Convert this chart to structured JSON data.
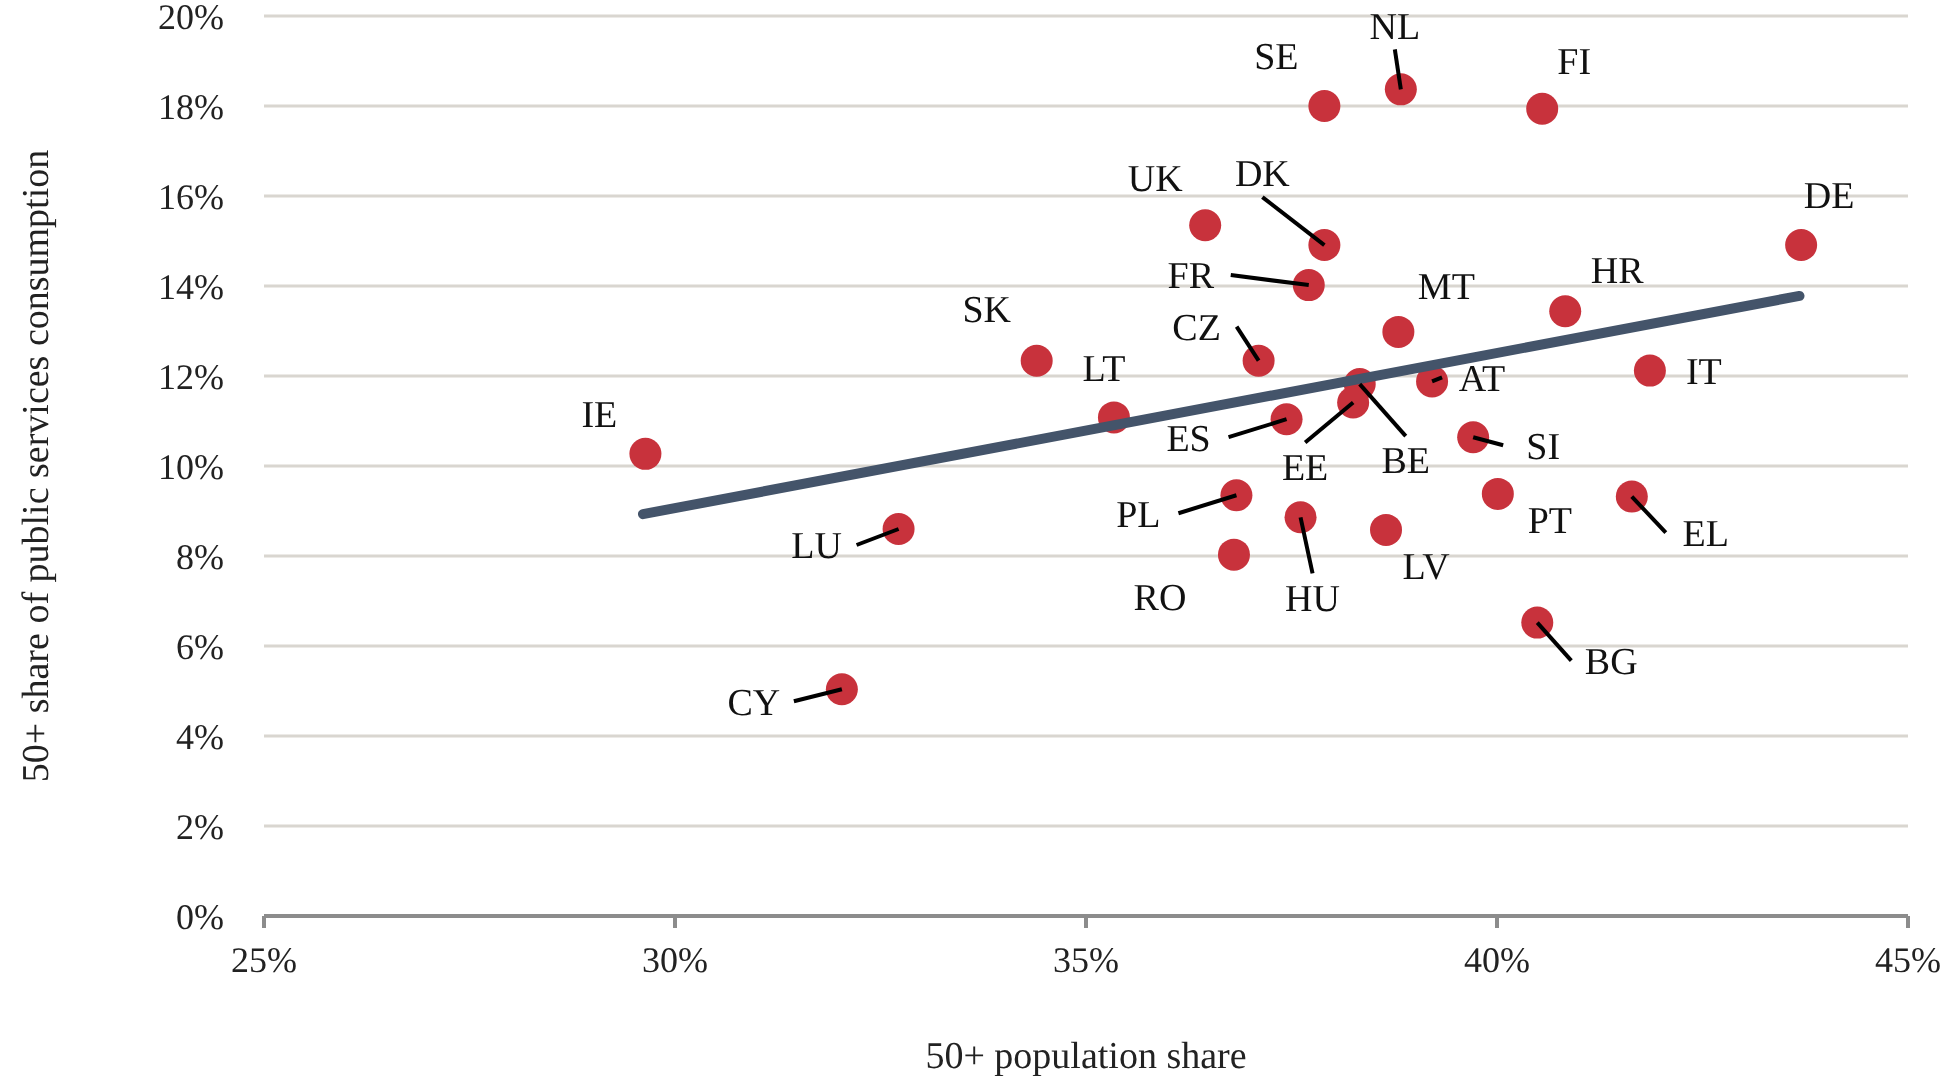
{
  "chart_data": {
    "type": "scatter",
    "xlabel": "50+ population share",
    "ylabel": "50+ share of public services consumption",
    "xlim": [
      25,
      45
    ],
    "ylim": [
      0,
      20
    ],
    "xticks": [
      {
        "value": 25,
        "label": "25%"
      },
      {
        "value": 30,
        "label": "30%"
      },
      {
        "value": 35,
        "label": "35%"
      },
      {
        "value": 40,
        "label": "40%"
      },
      {
        "value": 45,
        "label": "45%"
      }
    ],
    "yticks": [
      {
        "value": 0,
        "label": "0%"
      },
      {
        "value": 2,
        "label": "2%"
      },
      {
        "value": 4,
        "label": "4%"
      },
      {
        "value": 6,
        "label": "6%"
      },
      {
        "value": 8,
        "label": "8%"
      },
      {
        "value": 10,
        "label": "10%"
      },
      {
        "value": 12,
        "label": "12%"
      },
      {
        "value": 14,
        "label": "14%"
      },
      {
        "value": 16,
        "label": "16%"
      },
      {
        "value": 18,
        "label": "18%"
      },
      {
        "value": 20,
        "label": "20%"
      }
    ],
    "grid": "y",
    "series": [
      {
        "marker": "circle",
        "color": "#c8323c",
        "x": [
          37.9,
          38.83,
          40.55,
          36.45,
          37.9,
          37.71,
          43.7,
          40.83,
          38.8,
          34.4,
          37.1,
          35.34,
          41.86,
          39.21,
          38.33,
          38.25,
          37.44,
          39.71,
          29.64,
          36.83,
          40.01,
          41.64,
          37.61,
          38.65,
          32.72,
          36.8,
          40.49,
          32.03
        ],
        "values": [
          18.0,
          18.37,
          17.94,
          15.35,
          14.91,
          14.02,
          14.91,
          13.44,
          12.98,
          12.34,
          12.34,
          11.08,
          12.12,
          11.88,
          11.82,
          11.41,
          11.04,
          10.64,
          10.27,
          9.35,
          9.38,
          9.32,
          8.86,
          8.58,
          8.6,
          8.03,
          6.52,
          5.04
        ]
      },
      {
        "type": "line",
        "color": "#44546a",
        "x": [
          29.61,
          43.68
        ],
        "values": [
          8.93,
          13.78
        ]
      }
    ],
    "annotations": [
      {
        "text": "SE",
        "x": 37.9,
        "y": 18.0
      },
      {
        "text": "NL",
        "x": 38.83,
        "y": 18.37
      },
      {
        "text": "FI",
        "x": 40.55,
        "y": 17.94
      },
      {
        "text": "UK",
        "x": 36.45,
        "y": 15.35
      },
      {
        "text": "DK",
        "x": 37.9,
        "y": 14.91
      },
      {
        "text": "FR",
        "x": 37.71,
        "y": 14.02
      },
      {
        "text": "DE",
        "x": 43.7,
        "y": 14.91
      },
      {
        "text": "HR",
        "x": 40.83,
        "y": 13.44
      },
      {
        "text": "MT",
        "x": 38.8,
        "y": 12.98
      },
      {
        "text": "SK",
        "x": 34.4,
        "y": 12.34
      },
      {
        "text": "CZ",
        "x": 37.1,
        "y": 12.34
      },
      {
        "text": "LT",
        "x": 35.34,
        "y": 11.08
      },
      {
        "text": "IT",
        "x": 41.86,
        "y": 12.12
      },
      {
        "text": "AT",
        "x": 39.21,
        "y": 11.88
      },
      {
        "text": "BE",
        "x": 38.33,
        "y": 11.82
      },
      {
        "text": "EE",
        "x": 38.25,
        "y": 11.41
      },
      {
        "text": "ES",
        "x": 37.44,
        "y": 11.04
      },
      {
        "text": "SI",
        "x": 39.71,
        "y": 10.64
      },
      {
        "text": "IE",
        "x": 29.64,
        "y": 10.27
      },
      {
        "text": "PL",
        "x": 36.83,
        "y": 9.35
      },
      {
        "text": "PT",
        "x": 40.01,
        "y": 9.38
      },
      {
        "text": "EL",
        "x": 41.64,
        "y": 9.32
      },
      {
        "text": "HU",
        "x": 37.61,
        "y": 8.86
      },
      {
        "text": "LV",
        "x": 38.65,
        "y": 8.58
      },
      {
        "text": "LU",
        "x": 32.72,
        "y": 8.6
      },
      {
        "text": "RO",
        "x": 36.8,
        "y": 8.03
      },
      {
        "text": "BG",
        "x": 40.49,
        "y": 6.52
      },
      {
        "text": "CY",
        "x": 32.03,
        "y": 5.04
      }
    ]
  }
}
